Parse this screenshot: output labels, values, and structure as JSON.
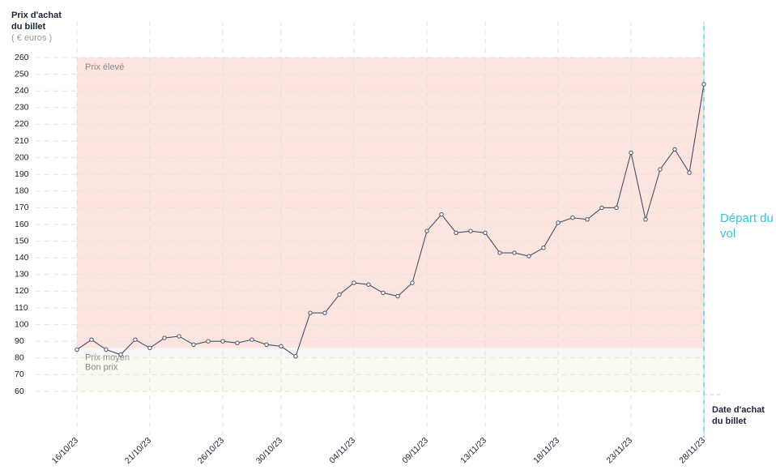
{
  "chart_data": {
    "type": "line",
    "y_title": "Prix d'achat du billet",
    "y_unit": "( € euros )",
    "x_title": "Date d'achat du billet",
    "departure_label": "Départ du vol",
    "categories": [
      "16/10/23",
      null,
      null,
      null,
      null,
      "21/10/23",
      null,
      null,
      null,
      null,
      "26/10/23",
      null,
      null,
      null,
      "30/10/23",
      null,
      null,
      null,
      null,
      "04/11/23",
      null,
      null,
      null,
      null,
      "09/11/23",
      null,
      null,
      null,
      "13/11/23",
      null,
      null,
      null,
      null,
      "18/11/23",
      null,
      null,
      null,
      null,
      "23/11/23",
      null,
      null,
      null,
      null,
      "28/11/23"
    ],
    "series": [
      {
        "color": "#4a5068",
        "values": [
          85,
          91,
          85,
          82,
          91,
          86,
          92,
          93,
          88,
          90,
          90,
          89,
          91,
          88,
          87,
          81,
          107,
          107,
          118,
          125,
          124,
          119,
          117,
          125,
          156,
          166,
          155,
          156,
          155,
          143,
          143,
          141,
          146,
          161,
          164,
          163,
          170,
          170,
          203,
          163,
          193,
          205,
          191,
          244
        ]
      }
    ],
    "bands": [
      {
        "label": "Prix élevé",
        "from": 86,
        "to": 260,
        "color": "#fde5df"
      },
      {
        "label": "Prix moyen",
        "from": 80,
        "to": 86,
        "color": "#f6f6f4"
      },
      {
        "label": "Bon prix",
        "from": 60,
        "to": 80,
        "color": "#fafaf0"
      }
    ],
    "ylim": [
      60,
      260
    ],
    "yticks": [
      60,
      70,
      80,
      90,
      100,
      110,
      120,
      130,
      140,
      150,
      160,
      170,
      180,
      190,
      200,
      210,
      220,
      230,
      240,
      250,
      260
    ],
    "grid": true
  }
}
